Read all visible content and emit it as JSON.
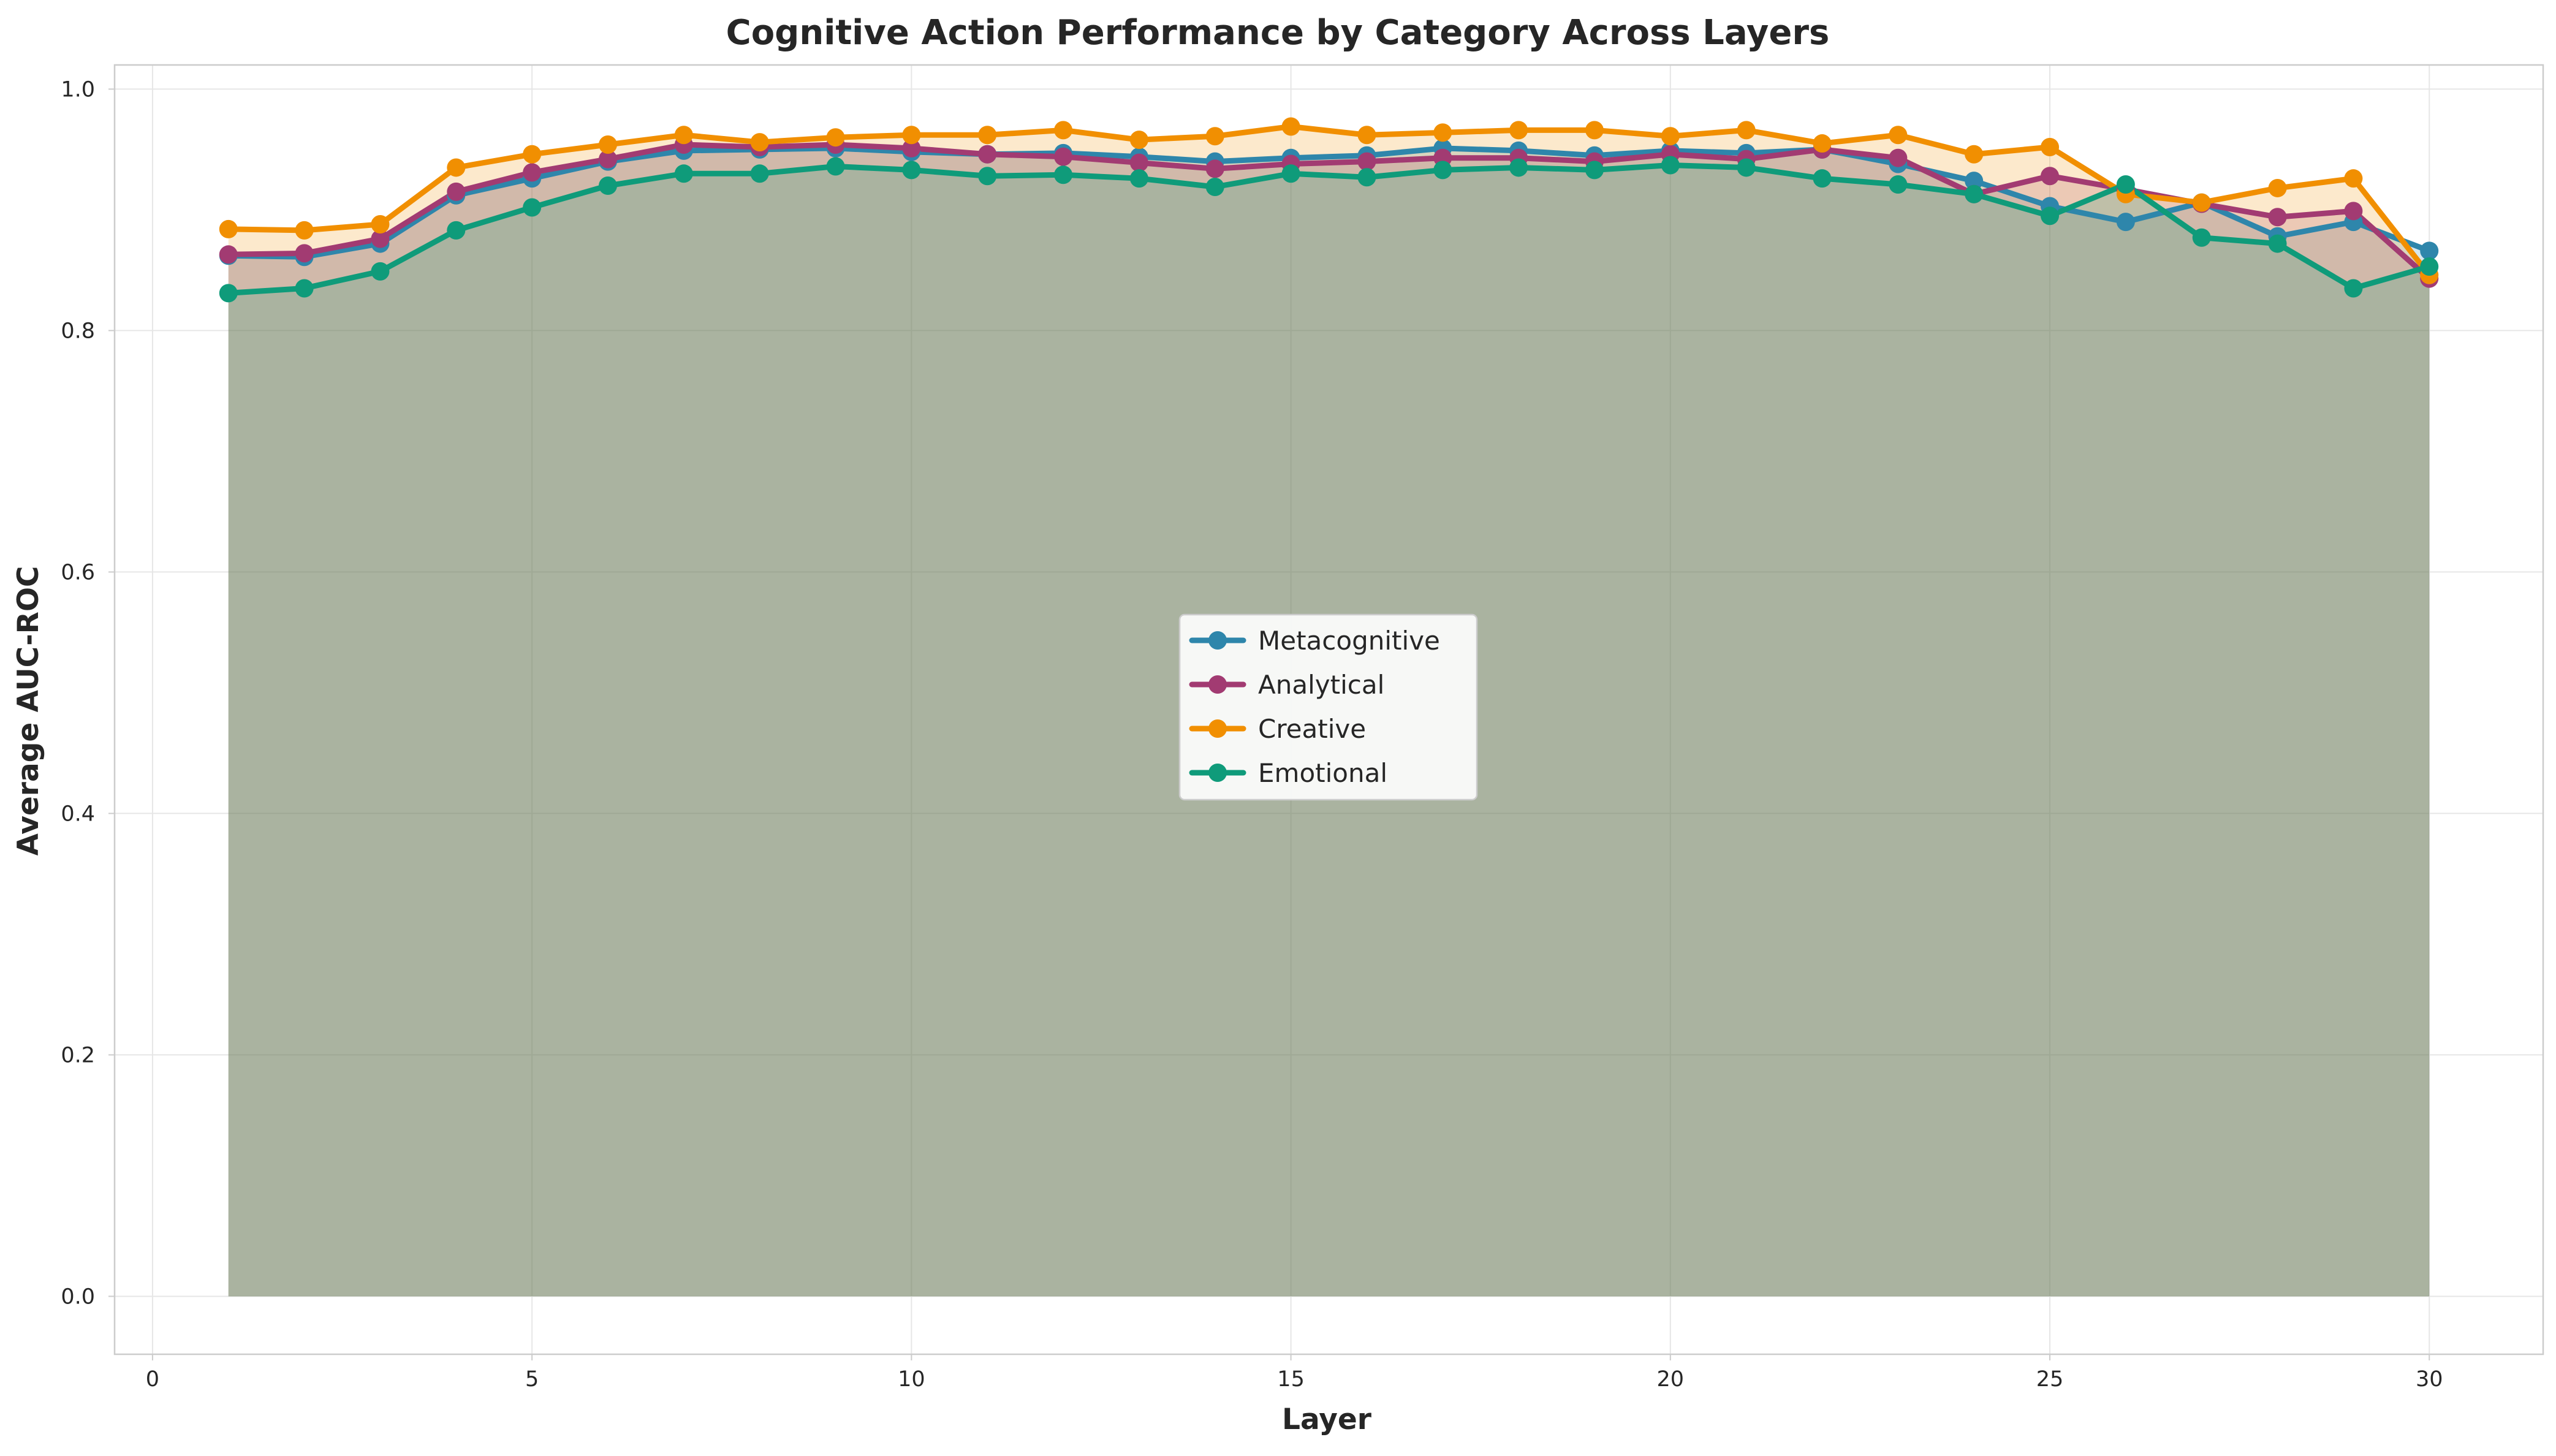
{
  "chart_data": {
    "type": "line",
    "title": "Cognitive Action Performance by Category Across Layers",
    "xlabel": "Layer",
    "ylabel": "Average AUC-ROC",
    "xlim": [
      -0.5,
      31.5
    ],
    "ylim": [
      -0.048,
      1.02
    ],
    "xticks": [
      0,
      5,
      10,
      15,
      20,
      25,
      30
    ],
    "xtick_labels": [
      "0",
      "5",
      "10",
      "15",
      "20",
      "25",
      "30"
    ],
    "yticks": [
      0.0,
      0.2,
      0.4,
      0.6,
      0.8,
      1.0
    ],
    "ytick_labels": [
      "0.0",
      "0.2",
      "0.4",
      "0.6",
      "0.8",
      "1.0"
    ],
    "grid": true,
    "legend_position": "center",
    "area_fill": true,
    "x": [
      1,
      2,
      3,
      4,
      5,
      6,
      7,
      8,
      9,
      10,
      11,
      12,
      13,
      14,
      15,
      16,
      17,
      18,
      19,
      20,
      21,
      22,
      23,
      24,
      25,
      26,
      27,
      28,
      29,
      30
    ],
    "series": [
      {
        "name": "Metacognitive",
        "color": "#2e86ab",
        "values": [
          0.862,
          0.861,
          0.872,
          0.912,
          0.926,
          0.94,
          0.949,
          0.95,
          0.951,
          0.948,
          0.946,
          0.947,
          0.944,
          0.94,
          0.943,
          0.945,
          0.951,
          0.949,
          0.945,
          0.949,
          0.947,
          0.95,
          0.938,
          0.924,
          0.903,
          0.89,
          0.906,
          0.878,
          0.89,
          0.866
        ]
      },
      {
        "name": "Analytical",
        "color": "#a23b72",
        "values": [
          0.863,
          0.864,
          0.876,
          0.915,
          0.931,
          0.942,
          0.954,
          0.952,
          0.954,
          0.951,
          0.946,
          0.944,
          0.939,
          0.934,
          0.938,
          0.94,
          0.943,
          0.943,
          0.94,
          0.946,
          0.942,
          0.95,
          0.943,
          0.913,
          0.928,
          0.917,
          0.905,
          0.894,
          0.899,
          0.843
        ]
      },
      {
        "name": "Creative",
        "color": "#f18f01",
        "values": [
          0.884,
          0.883,
          0.888,
          0.935,
          0.946,
          0.954,
          0.962,
          0.956,
          0.96,
          0.962,
          0.962,
          0.966,
          0.958,
          0.961,
          0.969,
          0.962,
          0.964,
          0.966,
          0.966,
          0.961,
          0.966,
          0.955,
          0.962,
          0.946,
          0.952,
          0.913,
          0.906,
          0.918,
          0.926,
          0.846
        ]
      },
      {
        "name": "Emotional",
        "color": "#0f9b7a",
        "values": [
          0.831,
          0.835,
          0.849,
          0.883,
          0.902,
          0.92,
          0.93,
          0.93,
          0.936,
          0.933,
          0.928,
          0.929,
          0.926,
          0.919,
          0.93,
          0.927,
          0.933,
          0.935,
          0.933,
          0.937,
          0.935,
          0.926,
          0.921,
          0.913,
          0.895,
          0.921,
          0.877,
          0.872,
          0.835,
          0.853
        ]
      }
    ]
  }
}
